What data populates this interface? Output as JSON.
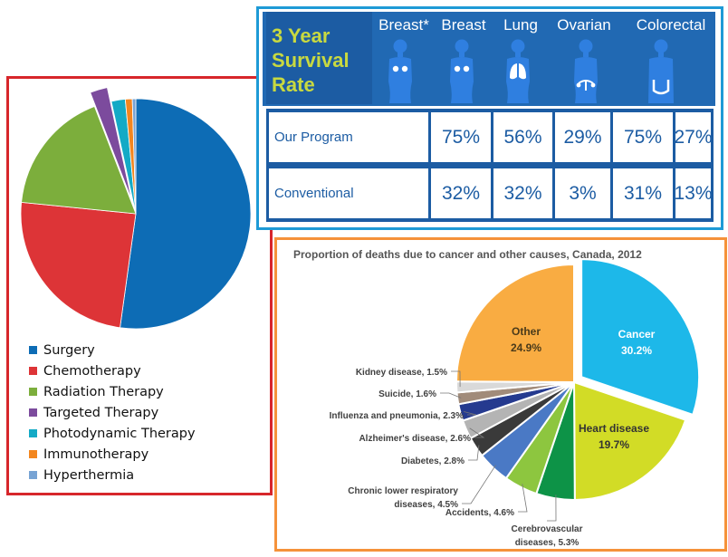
{
  "chart_data": [
    {
      "type": "pie",
      "title": "",
      "categories": [
        "Surgery",
        "Chemotherapy",
        "Radiation Therapy",
        "Targeted Therapy",
        "Photodynamic Therapy",
        "Immunotherapy",
        "Hyperthermia"
      ],
      "values": [
        53.5,
        25,
        18,
        2.5,
        2,
        1,
        0.5
      ],
      "colors": [
        "#0d6cb5",
        "#dd3437",
        "#7cae3c",
        "#7c4b9d",
        "#14aac6",
        "#f3861f",
        "#77a3d4"
      ],
      "exploded": [
        "Targeted Therapy"
      ],
      "legend": "bottom"
    },
    {
      "type": "table",
      "title": "3 Year Survival Rate",
      "columns": [
        "Breast*",
        "Breast",
        "Lung",
        "Ovarian",
        "Colorectal"
      ],
      "rows": [
        {
          "label": "Our Program",
          "values": [
            "75%",
            "56%",
            "29%",
            "75%",
            "27%"
          ]
        },
        {
          "label": "Conventional",
          "values": [
            "32%",
            "32%",
            "3%",
            "31%",
            "13%"
          ]
        }
      ],
      "icons": [
        "female-body-icon",
        "female-body-icon",
        "lungs-icon",
        "ovaries-icon",
        "colon-icon"
      ]
    },
    {
      "type": "pie",
      "title": "Proportion of deaths due to cancer and other causes, Canada, 2012",
      "categories": [
        "Cancer",
        "Heart disease",
        "Cerebrovascular diseases",
        "Accidents",
        "Chronic lower respiratory diseases",
        "Diabetes",
        "Alzheimer's disease",
        "Influenza and pneumonia",
        "Suicide",
        "Kidney disease",
        "Other"
      ],
      "values": [
        30.2,
        19.7,
        5.3,
        4.6,
        4.5,
        2.8,
        2.6,
        2.3,
        1.6,
        1.5,
        24.9
      ],
      "labels": [
        "Cancer\n30.2%",
        "Heart disease\n19.7%",
        "Cerebrovascular\ndiseases, 5.3%",
        "Accidents, 4.6%",
        "Chronic lower respiratory\ndiseases, 4.5%",
        "Diabetes, 2.8%",
        "Alzheimer's disease, 2.6%",
        "Influenza and pneumonia, 2.3%",
        "Suicide, 1.6%",
        "Kidney disease, 1.5%",
        "Other\n24.9%"
      ],
      "colors": [
        "#1db8e9",
        "#d2dc26",
        "#0d9347",
        "#8dc63f",
        "#4a79c5",
        "#3a3a3a",
        "#b4b4b4",
        "#253a8f",
        "#a18b7a",
        "#d9d9d9",
        "#f9ac42"
      ],
      "exploded": [
        "Cancer"
      ]
    }
  ]
}
